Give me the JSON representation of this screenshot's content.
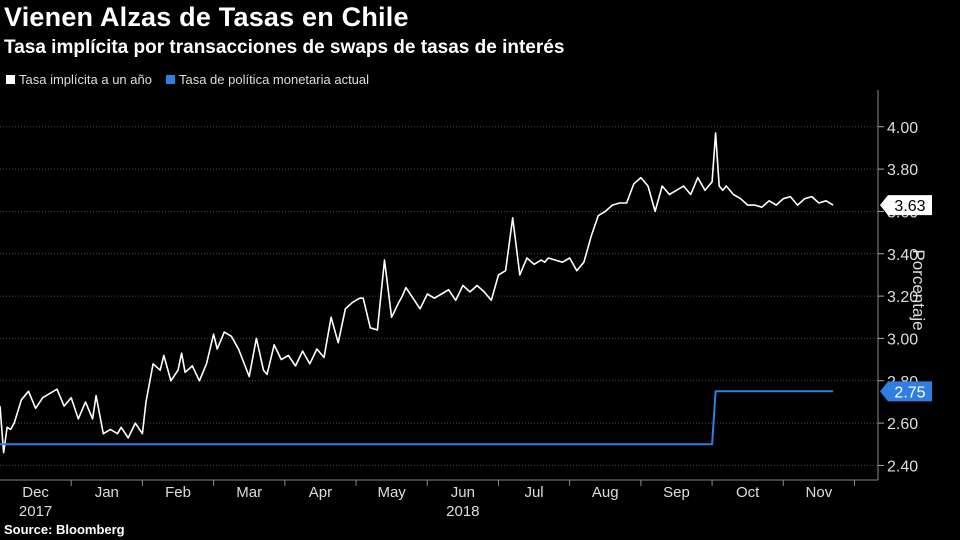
{
  "title": "Vienen Alzas de Tasas en Chile",
  "subtitle": "Tasa implícita por transacciones de swaps de tasas de interés",
  "source": "Source: Bloomberg",
  "colors": {
    "white_series": "#ffffff",
    "blue_series": "#2f7fe0",
    "background": "#000000",
    "grid": "#555555"
  },
  "chart_data": {
    "type": "line",
    "title": "Vienen Alzas de Tasas en Chile",
    "ylabel": "Porcentaje",
    "ylim": [
      2.35,
      4.15
    ],
    "yticks": [
      "4.00",
      "3.80",
      "3.60",
      "3.40",
      "3.20",
      "3.00",
      "2.80",
      "2.60",
      "2.40"
    ],
    "ytick_values": [
      4.0,
      3.8,
      3.6,
      3.4,
      3.2,
      3.0,
      2.8,
      2.6,
      2.4
    ],
    "xlim": [
      0,
      12.33
    ],
    "x_months": [
      "Dec",
      "Jan",
      "Feb",
      "Mar",
      "Apr",
      "May",
      "Jun",
      "Jul",
      "Aug",
      "Sep",
      "Oct",
      "Nov"
    ],
    "x_years": [
      {
        "label": "2017",
        "month_index": 0
      },
      {
        "label": "2018",
        "month_index": 6
      }
    ],
    "legend": [
      "Tasa implícita a un año",
      "Tasa de política monetaria actual"
    ],
    "series": [
      {
        "name": "Tasa implícita a un año",
        "color": "#ffffff",
        "last_label": "3.63",
        "x": [
          0,
          0.05,
          0.1,
          0.15,
          0.2,
          0.3,
          0.4,
          0.5,
          0.6,
          0.7,
          0.8,
          0.9,
          1.0,
          1.1,
          1.2,
          1.3,
          1.35,
          1.45,
          1.55,
          1.65,
          1.7,
          1.8,
          1.9,
          2.0,
          2.05,
          2.15,
          2.25,
          2.3,
          2.4,
          2.5,
          2.55,
          2.6,
          2.7,
          2.8,
          2.9,
          3.0,
          3.05,
          3.15,
          3.25,
          3.35,
          3.5,
          3.6,
          3.7,
          3.75,
          3.85,
          3.95,
          4.05,
          4.15,
          4.25,
          4.35,
          4.45,
          4.55,
          4.65,
          4.75,
          4.85,
          4.95,
          5.05,
          5.1,
          5.2,
          5.3,
          5.4,
          5.5,
          5.6,
          5.65,
          5.7,
          5.8,
          5.9,
          6.0,
          6.1,
          6.2,
          6.3,
          6.4,
          6.5,
          6.6,
          6.7,
          6.8,
          6.9,
          7.0,
          7.1,
          7.2,
          7.3,
          7.4,
          7.5,
          7.6,
          7.65,
          7.7,
          7.8,
          7.9,
          8.0,
          8.1,
          8.2,
          8.3,
          8.4,
          8.5,
          8.6,
          8.7,
          8.8,
          8.9,
          9.0,
          9.1,
          9.2,
          9.3,
          9.4,
          9.5,
          9.6,
          9.7,
          9.8,
          9.9,
          10.0,
          10.05,
          10.1,
          10.15,
          10.2,
          10.3,
          10.4,
          10.5,
          10.6,
          10.7,
          10.8,
          10.9,
          11.0,
          11.1,
          11.2,
          11.3,
          11.4,
          11.5,
          11.6,
          11.7
        ],
        "values": [
          2.68,
          2.46,
          2.58,
          2.57,
          2.6,
          2.71,
          2.75,
          2.67,
          2.72,
          2.74,
          2.76,
          2.68,
          2.72,
          2.62,
          2.7,
          2.62,
          2.73,
          2.55,
          2.57,
          2.55,
          2.58,
          2.53,
          2.6,
          2.55,
          2.7,
          2.88,
          2.85,
          2.92,
          2.8,
          2.85,
          2.93,
          2.84,
          2.87,
          2.8,
          2.88,
          3.02,
          2.95,
          3.03,
          3.01,
          2.95,
          2.82,
          3.0,
          2.85,
          2.83,
          2.97,
          2.9,
          2.92,
          2.87,
          2.94,
          2.88,
          2.95,
          2.91,
          3.1,
          2.98,
          3.14,
          3.17,
          3.19,
          3.19,
          3.05,
          3.04,
          3.37,
          3.1,
          3.17,
          3.2,
          3.24,
          3.19,
          3.14,
          3.21,
          3.19,
          3.21,
          3.23,
          3.18,
          3.25,
          3.22,
          3.25,
          3.22,
          3.18,
          3.3,
          3.32,
          3.57,
          3.3,
          3.38,
          3.35,
          3.37,
          3.36,
          3.38,
          3.37,
          3.36,
          3.38,
          3.32,
          3.36,
          3.48,
          3.58,
          3.6,
          3.63,
          3.64,
          3.64,
          3.73,
          3.76,
          3.72,
          3.6,
          3.72,
          3.68,
          3.7,
          3.72,
          3.68,
          3.76,
          3.7,
          3.74,
          3.97,
          3.72,
          3.7,
          3.72,
          3.68,
          3.66,
          3.63,
          3.63,
          3.62,
          3.65,
          3.63,
          3.66,
          3.67,
          3.63,
          3.66,
          3.67,
          3.64,
          3.65,
          3.63
        ]
      },
      {
        "name": "Tasa de política monetaria actual",
        "color": "#2f7fe0",
        "last_label": "2.75",
        "x": [
          0,
          10.0,
          10.05,
          11.7
        ],
        "values": [
          2.5,
          2.5,
          2.75,
          2.75
        ]
      }
    ]
  }
}
